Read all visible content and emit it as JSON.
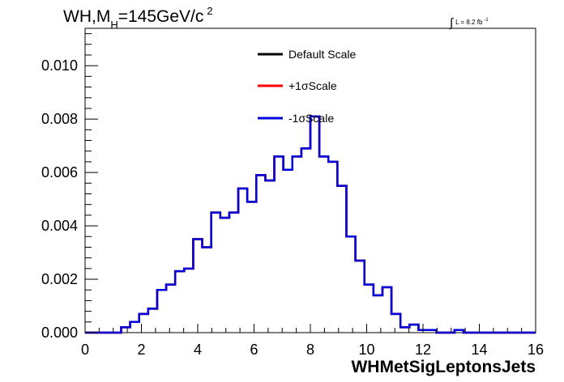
{
  "chart_data": {
    "type": "step",
    "title": {
      "prefix": "WH,M",
      "subscript": "H",
      "suffix": "=145GeV/c",
      "superscript": "2"
    },
    "luminosity": {
      "symbol": "∫",
      "text": "L = 8.2 fb",
      "superscript": "-1"
    },
    "xlabel": "WHMetSigLeptonsJets",
    "ylabel": "",
    "xlim": [
      0,
      16
    ],
    "ylim": [
      0,
      0.0114
    ],
    "x_ticks": [
      0,
      2,
      4,
      6,
      8,
      10,
      12,
      14,
      16
    ],
    "x_tick_labels": [
      "0",
      "2",
      "4",
      "6",
      "8",
      "10",
      "12",
      "14",
      "16"
    ],
    "y_ticks": [
      0,
      0.002,
      0.004,
      0.006,
      0.008,
      0.01
    ],
    "y_tick_labels": [
      "0.000",
      "0.002",
      "0.004",
      "0.006",
      "0.008",
      "0.010"
    ],
    "grid": false,
    "legend_placement": "top-center",
    "bin_edges": [
      0,
      0.32,
      0.64,
      0.96,
      1.28,
      1.6,
      1.92,
      2.24,
      2.56,
      2.88,
      3.2,
      3.52,
      3.84,
      4.16,
      4.48,
      4.8,
      5.12,
      5.44,
      5.76,
      6.08,
      6.4,
      6.72,
      7.04,
      7.36,
      7.68,
      8.0,
      8.32,
      8.64,
      8.96,
      9.28,
      9.6,
      9.92,
      10.24,
      10.56,
      10.88,
      11.2,
      11.52,
      11.84,
      12.16,
      12.48,
      12.8,
      13.12,
      13.44,
      13.76,
      14.08,
      14.4,
      14.72,
      15.04,
      15.36,
      15.68,
      16.0
    ],
    "series": [
      {
        "name": "Default Scale",
        "color": "#000000",
        "values": [
          0.0,
          0.0,
          0.0,
          0.0,
          0.0002,
          0.0004,
          0.0007,
          0.0009,
          0.0016,
          0.0018,
          0.0023,
          0.0024,
          0.0035,
          0.0032,
          0.0045,
          0.0043,
          0.0045,
          0.0054,
          0.0049,
          0.0059,
          0.0057,
          0.0066,
          0.0061,
          0.0066,
          0.0069,
          0.0081,
          0.0066,
          0.0064,
          0.0055,
          0.0036,
          0.0027,
          0.0018,
          0.0014,
          0.0017,
          0.0007,
          0.0002,
          0.0003,
          0.0001,
          0.0001,
          0.0,
          0.0,
          0.0001,
          0.0,
          0.0,
          0.0,
          0.0,
          0.0,
          0.0,
          0.0,
          0.0
        ]
      },
      {
        "name": "+1σScale",
        "color": "#ff0000",
        "values": [
          0.0,
          0.0,
          0.0,
          0.0,
          0.0002,
          0.0004,
          0.0007,
          0.0009,
          0.0016,
          0.0018,
          0.0023,
          0.0024,
          0.0035,
          0.0032,
          0.0045,
          0.0043,
          0.0045,
          0.0054,
          0.0049,
          0.0059,
          0.0057,
          0.0066,
          0.0061,
          0.0066,
          0.0069,
          0.0081,
          0.0066,
          0.0064,
          0.0055,
          0.0036,
          0.0027,
          0.0018,
          0.0014,
          0.0017,
          0.0007,
          0.0002,
          0.0003,
          0.0001,
          0.0001,
          0.0,
          0.0,
          0.0001,
          0.0,
          0.0,
          0.0,
          0.0,
          0.0,
          0.0,
          0.0,
          0.0
        ]
      },
      {
        "name": "-1σScale",
        "color": "#0000dd",
        "values": [
          0.0,
          0.0,
          0.0,
          0.0,
          0.0002,
          0.0004,
          0.0007,
          0.0009,
          0.0016,
          0.0018,
          0.0023,
          0.0024,
          0.0035,
          0.0032,
          0.0045,
          0.0043,
          0.0045,
          0.0054,
          0.0049,
          0.0059,
          0.0057,
          0.0066,
          0.0061,
          0.0066,
          0.0069,
          0.0081,
          0.0066,
          0.0064,
          0.0055,
          0.0036,
          0.0027,
          0.0018,
          0.0014,
          0.0017,
          0.0007,
          0.0002,
          0.0003,
          0.0001,
          0.0001,
          0.0,
          0.0,
          0.0001,
          0.0,
          0.0,
          0.0,
          0.0,
          0.0,
          0.0,
          0.0,
          0.0
        ]
      }
    ]
  }
}
